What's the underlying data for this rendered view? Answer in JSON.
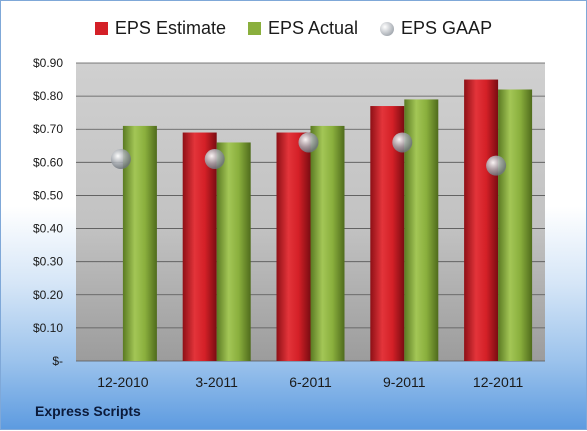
{
  "footer": {
    "company": "Express Scripts"
  },
  "chart_data": {
    "type": "bar",
    "categories": [
      "12-2010",
      "3-2011",
      "6-2011",
      "9-2011",
      "12-2011"
    ],
    "series": [
      {
        "name": "EPS Estimate",
        "kind": "bar",
        "color": "#d42027",
        "values": [
          null,
          0.69,
          0.69,
          0.77,
          0.85
        ]
      },
      {
        "name": "EPS Actual",
        "kind": "bar",
        "color": "#8aaf3d",
        "values": [
          0.71,
          0.66,
          0.71,
          0.79,
          0.82
        ]
      },
      {
        "name": "EPS GAAP",
        "kind": "marker",
        "color": "#a3a8ae",
        "values": [
          0.61,
          0.61,
          0.66,
          0.66,
          0.59
        ]
      }
    ],
    "y_ticks": [
      "$-",
      "$0.10",
      "$0.20",
      "$0.30",
      "$0.40",
      "$0.50",
      "$0.60",
      "$0.70",
      "$0.80",
      "$0.90"
    ],
    "ylim": [
      0,
      0.9
    ],
    "grid": true,
    "legend": "top-center"
  }
}
